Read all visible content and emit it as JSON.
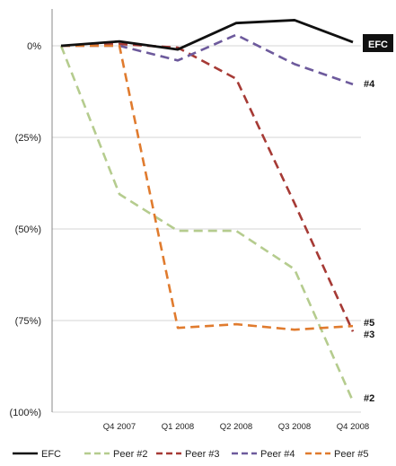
{
  "chart_data": {
    "type": "line",
    "title": "",
    "xlabel": "",
    "ylabel": "",
    "x": [
      0,
      1,
      2,
      3,
      4,
      5
    ],
    "tick_positions": [
      1,
      2,
      3,
      4,
      5
    ],
    "tick_labels": [
      "Q4 2007",
      "Q1 2008",
      "Q2 2008",
      "Q3 2008",
      "Q4 2008"
    ],
    "ylim": [
      -100,
      8
    ],
    "yticks": [
      0,
      -25,
      -50,
      -75,
      -100
    ],
    "ytick_labels": [
      "0%",
      "(25%)",
      "(50%)",
      "(75%)",
      "(100%)"
    ],
    "grid": "horizontal",
    "legend_position": "bottom",
    "series": [
      {
        "name": "Peer #2",
        "color": "#b5cc8e",
        "dashed": true,
        "end_label": "#2",
        "values": [
          0,
          -40.5,
          -50.5,
          -50.5,
          -61,
          -97
        ]
      },
      {
        "name": "Peer #3",
        "color": "#a63a35",
        "dashed": true,
        "end_label": "#3",
        "values": [
          0,
          0.5,
          -0.5,
          -9,
          -43,
          -78
        ]
      },
      {
        "name": "Peer #4",
        "color": "#6d5a9c",
        "dashed": true,
        "end_label": "#4",
        "values": [
          0,
          0,
          -4,
          3,
          -5,
          -10.5
        ]
      },
      {
        "name": "Peer #5",
        "color": "#e07b2e",
        "dashed": true,
        "end_label": "#5",
        "values": [
          0,
          0,
          -77,
          -76,
          -77.5,
          -76.5
        ]
      },
      {
        "name": "EFC",
        "color": "#111111",
        "dashed": false,
        "end_label": "EFC",
        "values": [
          0,
          1.2,
          -1,
          6.2,
          7,
          1
        ]
      }
    ],
    "legend_order": [
      "EFC",
      "Peer #2",
      "Peer #3",
      "Peer #4",
      "Peer #5"
    ]
  }
}
